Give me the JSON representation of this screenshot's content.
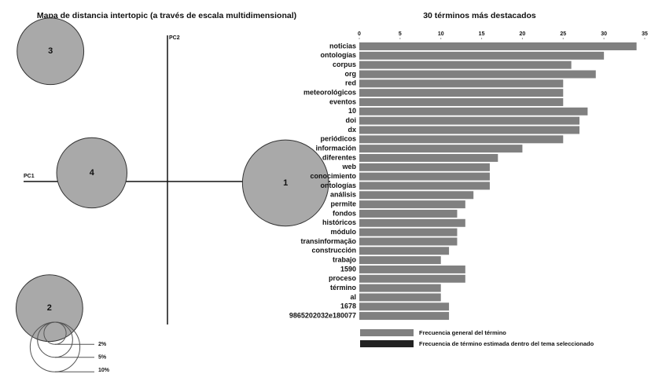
{
  "chart_data": [
    {
      "type": "scatter",
      "title": "Mapa de distancia intertopic (a través de escala multidimensional)",
      "xlabel": "PC1",
      "ylabel": "PC2",
      "point_labels": [
        "1",
        "2",
        "3",
        "4"
      ],
      "x": [
        0.231,
        -0.231,
        -0.229,
        -0.148
      ],
      "y": [
        -0.003,
        -0.248,
        0.255,
        0.017
      ],
      "sizes": [
        30,
        18,
        18,
        20
      ],
      "color": "#a9a9a9",
      "xlim": [
        -0.3,
        0.3
      ],
      "ylim": [
        -0.3,
        0.3
      ],
      "size_legend": [
        {
          "value": 2,
          "label": "2%"
        },
        {
          "value": 5,
          "label": "5%"
        },
        {
          "value": 10,
          "label": "10%"
        }
      ]
    },
    {
      "type": "bar",
      "title": "30 términos más destacados",
      "categories": [
        "noticias",
        "ontologías",
        "corpus",
        "org",
        "red",
        "meteorológicos",
        "eventos",
        "10",
        "doi",
        "dx",
        "periódicos",
        "información",
        "diferentes",
        "web",
        "conocimiento",
        "ontologías",
        "análisis",
        "permite",
        "fondos",
        "históricos",
        "módulo",
        "transinformação",
        "construcción",
        "trabajo",
        "1590",
        "proceso",
        "término",
        "al",
        "1678",
        "9865202032e180077"
      ],
      "series": [
        {
          "name": "Frecuencia general del término",
          "color": "#808080",
          "values": [
            34,
            30,
            26,
            29,
            25,
            25,
            25,
            28,
            27,
            27,
            25,
            20,
            17,
            16,
            16,
            16,
            14,
            13,
            12,
            13,
            12,
            12,
            11,
            10,
            13,
            13,
            10,
            10,
            11,
            11
          ]
        }
      ],
      "extra_legend": {
        "name": "Frecuencia de término estimada dentro del tema seleccionado",
        "color": "#222222"
      },
      "xlim": [
        0,
        35
      ],
      "xticks": [
        0,
        5,
        10,
        15,
        20,
        25,
        30,
        35
      ]
    }
  ]
}
